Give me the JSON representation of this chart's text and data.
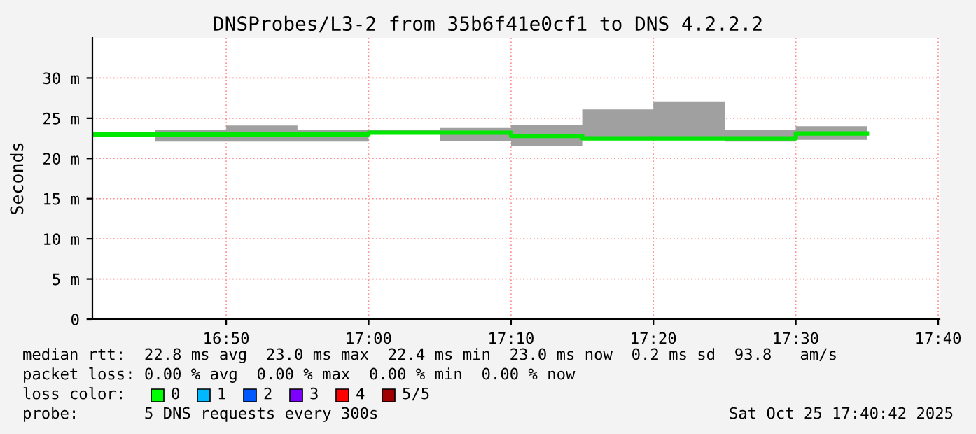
{
  "chart_data": {
    "type": "step",
    "title": "DNSProbes/L3-2 from 35b6f41e0cf1 to DNS 4.2.2.2",
    "ylabel": "Seconds",
    "x": [
      16.6767,
      16.75,
      16.8333,
      16.9167,
      17.0,
      17.0833,
      17.1667,
      17.25,
      17.3333,
      17.4167,
      17.5,
      17.5833
    ],
    "series": [
      {
        "color": "#00e800",
        "values": [
          23.0,
          23.0,
          23.0,
          23.0,
          23.2,
          23.2,
          22.8,
          22.5,
          22.5,
          22.5,
          23.1,
          23.1
        ],
        "lower": [
          22.8,
          22.1,
          22.1,
          22.1,
          23.0,
          22.2,
          21.5,
          22.3,
          22.3,
          22.1,
          22.3,
          22.3
        ],
        "upper": [
          23.2,
          23.5,
          24.1,
          23.6,
          23.5,
          23.8,
          24.2,
          26.1,
          27.1,
          23.6,
          24.0,
          24.0
        ]
      }
    ],
    "xlim": [
      16.6767,
      17.6683
    ],
    "xticks": [
      {
        "value": 16.8333,
        "label": "16:50"
      },
      {
        "value": 17.0,
        "label": "17:00"
      },
      {
        "value": 17.1667,
        "label": "17:10"
      },
      {
        "value": 17.3333,
        "label": "17:20"
      },
      {
        "value": 17.5,
        "label": "17:30"
      },
      {
        "value": 17.6667,
        "label": "17:40"
      }
    ],
    "ylim": [
      0,
      35
    ],
    "yticks": [
      0,
      {
        "value": 5,
        "label": "5 m"
      },
      {
        "value": 10,
        "label": "10 m"
      },
      {
        "value": 15,
        "label": "15 m"
      },
      {
        "value": 20,
        "label": "20 m"
      },
      {
        "value": 25,
        "label": "25 m"
      },
      {
        "value": 30,
        "label": "30 m"
      }
    ],
    "grid": true,
    "annotations": [
      "median rtt:  22.8 ms avg  23.0 ms max  22.4 ms min  23.0 ms now  0.2 ms sd  93.8   am/s",
      "packet loss: 0.00 % avg  0.00 % max  0.00 % min  0.00 % now",
      "loss color:",
      "0",
      "1",
      "2",
      "3",
      "4",
      "5/5",
      "probe:       5 DNS requests every 300s",
      "Sat Oct 25 17:40:42 2025"
    ]
  }
}
